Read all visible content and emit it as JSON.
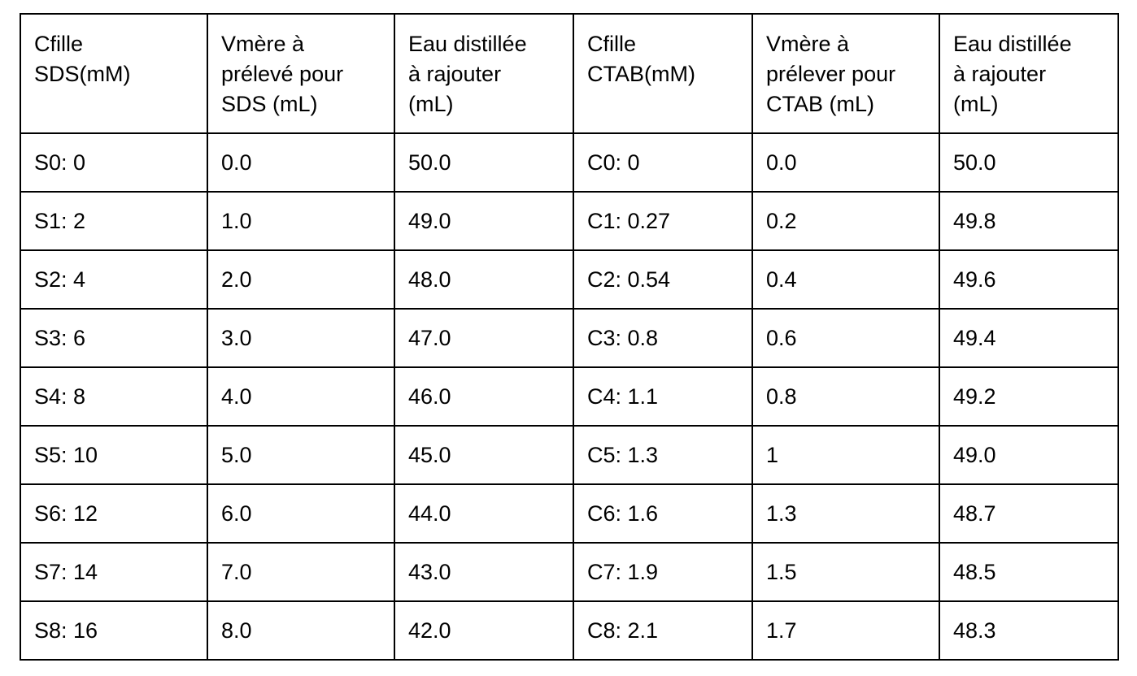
{
  "table": {
    "header": [
      [
        "Cfille",
        "SDS(mM)"
      ],
      [
        "Vmère à",
        "prélevé pour",
        "SDS (mL)"
      ],
      [
        "Eau distillée",
        "à rajouter",
        "(mL)"
      ],
      [
        "Cfille",
        "CTAB(mM)"
      ],
      [
        "Vmère à",
        "prélever pour",
        "CTAB (mL)"
      ],
      [
        "Eau distillée",
        "à rajouter",
        "(mL)"
      ]
    ],
    "rows": [
      [
        "S0: 0",
        "0.0",
        "50.0",
        "C0: 0",
        "0.0",
        "50.0"
      ],
      [
        "S1: 2",
        "1.0",
        "49.0",
        "C1: 0.27",
        "0.2",
        "49.8"
      ],
      [
        "S2: 4",
        "2.0",
        "48.0",
        "C2: 0.54",
        "0.4",
        "49.6"
      ],
      [
        "S3: 6",
        "3.0",
        "47.0",
        "C3: 0.8",
        "0.6",
        "49.4"
      ],
      [
        "S4: 8",
        "4.0",
        "46.0",
        "C4: 1.1",
        "0.8",
        "49.2"
      ],
      [
        "S5: 10",
        "5.0",
        "45.0",
        "C5: 1.3",
        "1",
        "49.0"
      ],
      [
        "S6: 12",
        "6.0",
        "44.0",
        "C6: 1.6",
        "1.3",
        "48.7"
      ],
      [
        "S7: 14",
        "7.0",
        "43.0",
        "C7: 1.9",
        "1.5",
        "48.5"
      ],
      [
        "S8: 16",
        "8.0",
        "42.0",
        "C8: 2.1",
        "1.7",
        "48.3"
      ]
    ]
  }
}
